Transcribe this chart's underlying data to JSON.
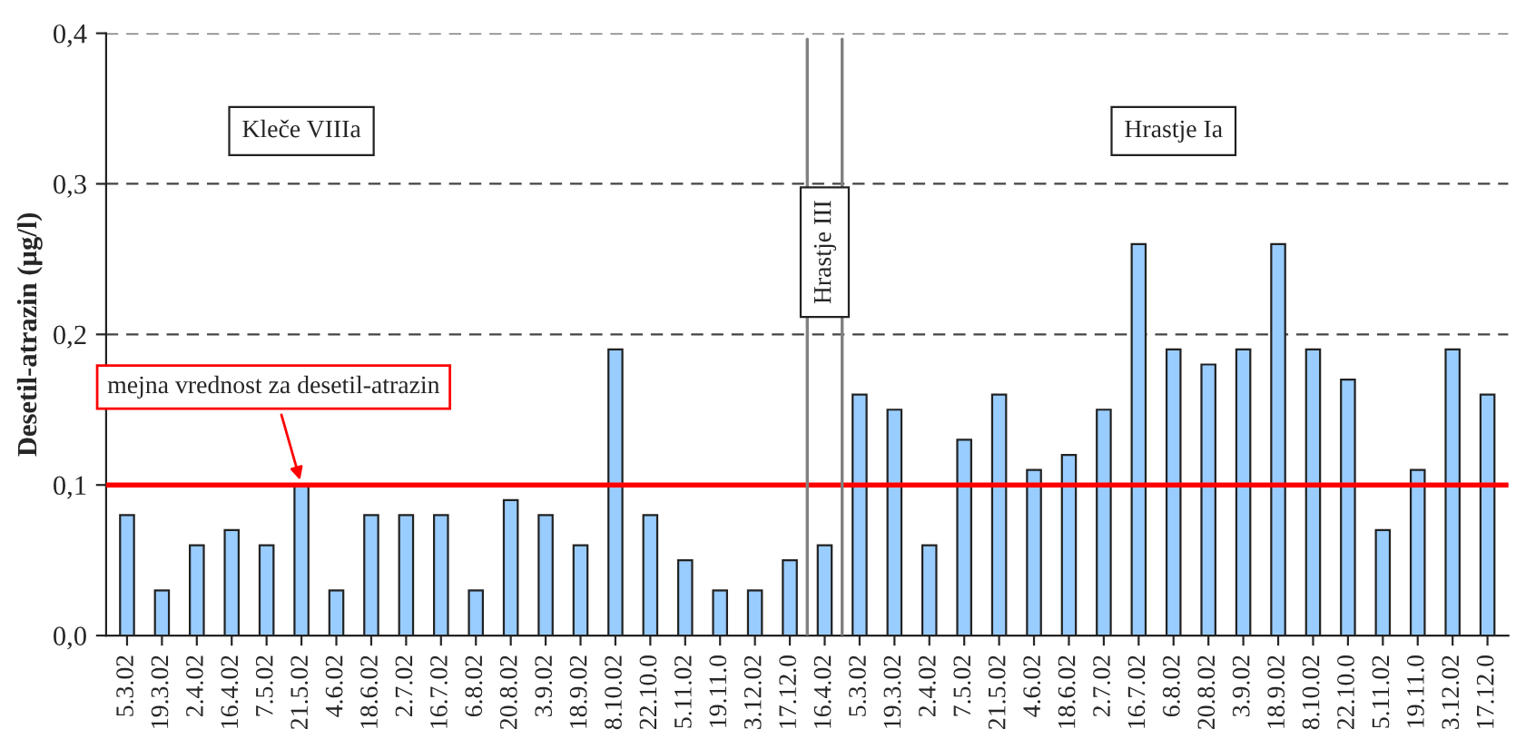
{
  "chart_data": {
    "type": "bar",
    "ylabel": "Desetil-atrazin (µg/l)",
    "categories": [
      "5.3.02",
      "19.3.02",
      "2.4.02",
      "16.4.02",
      "7.5.02",
      "21.5.02",
      "4.6.02",
      "18.6.02",
      "2.7.02",
      "16.7.02",
      "6.8.02",
      "20.8.02",
      "3.9.02",
      "18.9.02",
      "8.10.02",
      "22.10.0",
      "5.11.02",
      "19.11.0",
      "3.12.02",
      "17.12.0",
      "16.4.02",
      "5.3.02",
      "19.3.02",
      "2.4.02",
      "7.5.02",
      "21.5.02",
      "4.6.02",
      "18.6.02",
      "2.7.02",
      "16.7.02",
      "6.8.02",
      "20.8.02",
      "3.9.02",
      "18.9.02",
      "8.10.02",
      "22.10.0",
      "5.11.02",
      "19.11.0",
      "3.12.02",
      "17.12.0"
    ],
    "values": [
      0.08,
      0.03,
      0.06,
      0.07,
      0.06,
      0.1,
      0.03,
      0.08,
      0.08,
      0.08,
      0.03,
      0.09,
      0.08,
      0.06,
      0.19,
      0.08,
      0.05,
      0.03,
      0.03,
      0.05,
      0.06,
      0.16,
      0.15,
      0.06,
      0.13,
      0.16,
      0.11,
      0.12,
      0.15,
      0.26,
      0.19,
      0.18,
      0.19,
      0.26,
      0.19,
      0.17,
      0.07,
      0.11,
      0.19,
      0.16
    ],
    "color": "#99ccff",
    "ylim": [
      0,
      0.4
    ],
    "yticks": [
      {
        "value": 0,
        "label": "0,0"
      },
      {
        "value": 0.1,
        "label": "0,1"
      },
      {
        "value": 0.2,
        "label": "0,2"
      },
      {
        "value": 0.3,
        "label": "0,3"
      },
      {
        "value": 0.4,
        "label": "0,4"
      }
    ],
    "grid": "y",
    "ref_lines": [
      {
        "axis": "y",
        "value": 0.1,
        "label": "mejna vrednost za desetil-atrazin",
        "color": "#ff0000",
        "line_style": "solid"
      }
    ],
    "annotations": [
      "Kleče VIIIa",
      "Hrastje III",
      "Hrastje Ia"
    ]
  }
}
